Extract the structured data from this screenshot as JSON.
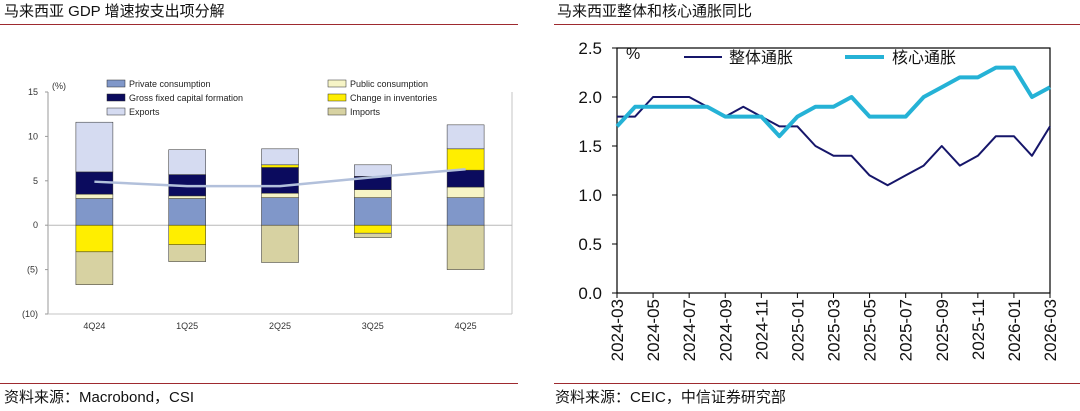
{
  "panels": [
    {
      "source": "资料来源：Macrobond，CSI"
    },
    {
      "source": "资料来源：CEIC，中信证券研究部"
    }
  ],
  "colors": {
    "rule": "#9e2a2f"
  },
  "chart_data": [
    {
      "type": "bar",
      "stacked": true,
      "title": "马来西亚 GDP 增速按支出项分解",
      "unit": "(%)",
      "categories": [
        "4Q24",
        "1Q25",
        "2Q25",
        "3Q25",
        "4Q25"
      ],
      "ylim": [
        -10,
        15
      ],
      "yticks": [
        15,
        10,
        5,
        0,
        -5,
        -10
      ],
      "ytick_labels": [
        "15",
        "10",
        "5",
        "0",
        "(5)",
        "(10)"
      ],
      "grid": false,
      "legend_position": "top",
      "series": [
        {
          "name": "Private consumption",
          "color": "#8097c9",
          "values": [
            3.0,
            3.0,
            3.1,
            3.1,
            3.1
          ]
        },
        {
          "name": "Public consumption",
          "color": "#f6f4c6",
          "values": [
            0.5,
            0.3,
            0.5,
            0.9,
            1.2
          ]
        },
        {
          "name": "Gross fixed capital formation",
          "color": "#0b0b5e",
          "values": [
            2.5,
            2.4,
            2.9,
            1.5,
            1.9
          ]
        },
        {
          "name": "Change in inventories",
          "color": "#ffee00",
          "values": [
            -3.0,
            -2.2,
            0.3,
            -0.9,
            2.4
          ]
        },
        {
          "name": "Exports",
          "color": "#d5dbf1",
          "values": [
            5.6,
            2.8,
            1.8,
            1.3,
            2.7
          ]
        },
        {
          "name": "Imports",
          "color": "#d7d2a2",
          "values": [
            -3.7,
            -1.9,
            -4.2,
            -0.5,
            -5.0
          ]
        }
      ],
      "line": {
        "color": "#b2c0db",
        "values": [
          4.9,
          4.4,
          4.4,
          5.4,
          6.3
        ]
      }
    },
    {
      "type": "line",
      "title": "马来西亚整体和核心通胀同比",
      "unit": "%",
      "x": [
        "2024-03",
        "2024-04",
        "2024-05",
        "2024-06",
        "2024-07",
        "2024-08",
        "2024-09",
        "2024-10",
        "2024-11",
        "2024-12",
        "2025-01",
        "2025-02",
        "2025-03",
        "2025-04",
        "2025-05",
        "2025-06",
        "2025-07",
        "2025-08",
        "2025-09",
        "2025-10",
        "2025-11",
        "2025-12",
        "2026-01",
        "2026-02",
        "2026-03"
      ],
      "xtick_labels": [
        "2024-03",
        "2024-05",
        "2024-07",
        "2024-09",
        "2024-11",
        "2025-01",
        "2025-03",
        "2025-05",
        "2025-07",
        "2025-09",
        "2025-11",
        "2026-01",
        "2026-03"
      ],
      "ylim": [
        0,
        2.5
      ],
      "yticks": [
        0,
        0.5,
        1.0,
        1.5,
        2.0,
        2.5
      ],
      "ytick_labels": [
        "0.0",
        "0.5",
        "1.0",
        "1.5",
        "2.0",
        "2.5"
      ],
      "grid": false,
      "legend_position": "top",
      "series": [
        {
          "name": "整体通胀",
          "color": "#16166a",
          "values": [
            1.8,
            1.8,
            2.0,
            2.0,
            2.0,
            1.9,
            1.8,
            1.9,
            1.8,
            1.7,
            1.7,
            1.5,
            1.4,
            1.4,
            1.2,
            1.1,
            1.2,
            1.3,
            1.5,
            1.3,
            1.4,
            1.6,
            1.6,
            1.4,
            1.7
          ]
        },
        {
          "name": "核心通胀",
          "color": "#25b2d6",
          "values": [
            1.7,
            1.9,
            1.9,
            1.9,
            1.9,
            1.9,
            1.8,
            1.8,
            1.8,
            1.6,
            1.8,
            1.9,
            1.9,
            2.0,
            1.8,
            1.8,
            1.8,
            2.0,
            2.1,
            2.2,
            2.2,
            2.3,
            2.3,
            2.0,
            2.1
          ]
        }
      ]
    }
  ]
}
